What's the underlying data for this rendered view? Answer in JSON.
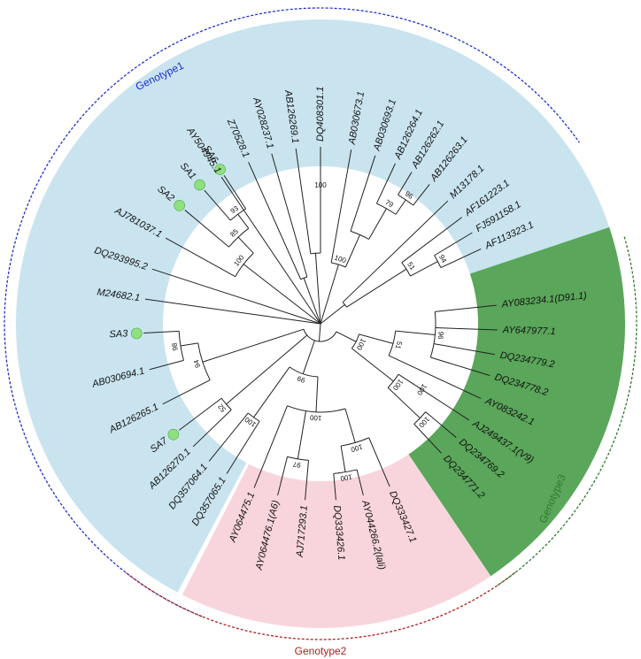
{
  "colors": {
    "genotype1_fill": "#c9e4ef",
    "genotype2_fill": "#f8d5dc",
    "genotype3_fill": "#5aa65a",
    "genotype1_line": "#1f2fd0",
    "genotype2_line": "#b02020",
    "genotype3_line": "#2f7a2f",
    "highlight_marker": "#8fe07f"
  },
  "groups": [
    {
      "id": "g1",
      "label": "Genotype1"
    },
    {
      "id": "g2",
      "label": "Genotype2"
    },
    {
      "id": "g3",
      "label": "Genotype3"
    }
  ],
  "leaves": [
    {
      "label": "AY504945.1",
      "group": "g1",
      "highlight": false
    },
    {
      "label": "Z70528.1",
      "group": "g1",
      "highlight": false
    },
    {
      "label": "AY028237.1",
      "group": "g1",
      "highlight": false
    },
    {
      "label": "AB126269.1",
      "group": "g1",
      "highlight": false
    },
    {
      "label": "DQ408301.1",
      "group": "g1",
      "highlight": false
    },
    {
      "label": "AB030673.1",
      "group": "g1",
      "highlight": false
    },
    {
      "label": "AB030693.1",
      "group": "g1",
      "highlight": false
    },
    {
      "label": "AB126264.1",
      "group": "g1",
      "highlight": false
    },
    {
      "label": "AB126262.1",
      "group": "g1",
      "highlight": false
    },
    {
      "label": "AB126263.1",
      "group": "g1",
      "highlight": false
    },
    {
      "label": "M13178.1",
      "group": "g1",
      "highlight": false
    },
    {
      "label": "AF161223.1",
      "group": "g1",
      "highlight": false
    },
    {
      "label": "FJ591158.1",
      "group": "g1",
      "highlight": false
    },
    {
      "label": "AF113323.1",
      "group": "g1",
      "highlight": false
    },
    {
      "label": "AY083234.1(D91.1)",
      "group": "g3",
      "highlight": false
    },
    {
      "label": "AY647977.1",
      "group": "g3",
      "highlight": false
    },
    {
      "label": "DQ234779.2",
      "group": "g3",
      "highlight": false
    },
    {
      "label": "DQ234778.2",
      "group": "g3",
      "highlight": false
    },
    {
      "label": "AY083242.1",
      "group": "g3",
      "highlight": false
    },
    {
      "label": "AJ249437.1(V9)",
      "group": "g3",
      "highlight": false
    },
    {
      "label": "DQ234769.2",
      "group": "g3",
      "highlight": false
    },
    {
      "label": "DQ234771.2",
      "group": "g3",
      "highlight": false
    },
    {
      "label": "DQ333427.1",
      "group": "g2",
      "highlight": false
    },
    {
      "label": "AY044266.2(lali)",
      "group": "g2",
      "highlight": false
    },
    {
      "label": "DQ333426.1",
      "group": "g2",
      "highlight": false
    },
    {
      "label": "AJ717293.1",
      "group": "g2",
      "highlight": false
    },
    {
      "label": "AY064476.1(A6)",
      "group": "g2",
      "highlight": false
    },
    {
      "label": "AY064475.1",
      "group": "g2",
      "highlight": false
    },
    {
      "label": "DQ357065.1",
      "group": "g1",
      "highlight": false
    },
    {
      "label": "DQ357064.1",
      "group": "g1",
      "highlight": false
    },
    {
      "label": "AB126270.1",
      "group": "g1",
      "highlight": false
    },
    {
      "label": "SA7",
      "group": "g1",
      "highlight": true
    },
    {
      "label": "AB126265.1",
      "group": "g1",
      "highlight": false
    },
    {
      "label": "AB030694.1",
      "group": "g1",
      "highlight": false
    },
    {
      "label": "SA3",
      "group": "g1",
      "highlight": true
    },
    {
      "label": "M24682.1",
      "group": "g1",
      "highlight": false
    },
    {
      "label": "DQ293995.2",
      "group": "g1",
      "highlight": false
    },
    {
      "label": "AJ781037.1",
      "group": "g1",
      "highlight": false
    },
    {
      "label": "SA2",
      "group": "g1",
      "highlight": true
    },
    {
      "label": "SA1",
      "group": "g1",
      "highlight": true
    },
    {
      "label": "SA6",
      "group": "g1",
      "highlight": true
    }
  ],
  "bootstrap_values": [
    "100",
    "96",
    "79",
    "100",
    "94",
    "51",
    "96",
    "51",
    "100",
    "100",
    "100",
    "100",
    "100",
    "100",
    "97",
    "100",
    "100",
    "99",
    "52",
    "98",
    "94",
    "93",
    "85",
    "100",
    "87",
    "100",
    "100",
    "55"
  ]
}
